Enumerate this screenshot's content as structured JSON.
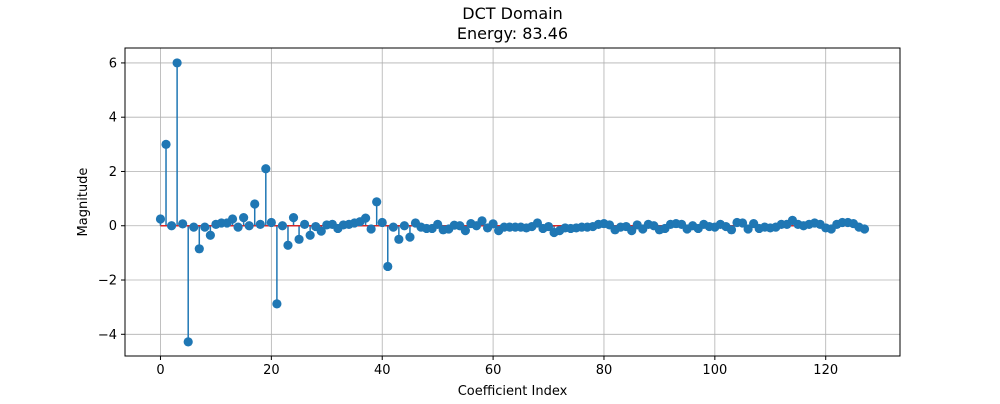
{
  "chart_data": {
    "type": "stem",
    "title": "DCT Domain",
    "subtitle": "Energy: 83.46",
    "xlabel": "Coefficient Index",
    "ylabel": "Magnitude",
    "xlim": [
      -6.4,
      133.4
    ],
    "ylim": [
      -4.8,
      6.55
    ],
    "xticks": [
      0,
      20,
      40,
      60,
      80,
      100,
      120
    ],
    "yticks": [
      -4,
      -2,
      0,
      2,
      4,
      6
    ],
    "ytick_labels": [
      "−4",
      "−2",
      "0",
      "2",
      "4",
      "6"
    ],
    "grid": true,
    "baseline": 0,
    "x": [
      0,
      1,
      2,
      3,
      4,
      5,
      6,
      7,
      8,
      9,
      10,
      11,
      12,
      13,
      14,
      15,
      16,
      17,
      18,
      19,
      20,
      21,
      22,
      23,
      24,
      25,
      26,
      27,
      28,
      29,
      30,
      31,
      32,
      33,
      34,
      35,
      36,
      37,
      38,
      39,
      40,
      41,
      42,
      43,
      44,
      45,
      46,
      47,
      48,
      49,
      50,
      51,
      52,
      53,
      54,
      55,
      56,
      57,
      58,
      59,
      60,
      61,
      62,
      63,
      64,
      65,
      66,
      67,
      68,
      69,
      70,
      71,
      72,
      73,
      74,
      75,
      76,
      77,
      78,
      79,
      80,
      81,
      82,
      83,
      84,
      85,
      86,
      87,
      88,
      89,
      90,
      91,
      92,
      93,
      94,
      95,
      96,
      97,
      98,
      99,
      100,
      101,
      102,
      103,
      104,
      105,
      106,
      107,
      108,
      109,
      110,
      111,
      112,
      113,
      114,
      115,
      116,
      117,
      118,
      119,
      120,
      121,
      122,
      123,
      124,
      125,
      126,
      127
    ],
    "values": [
      0.25,
      3.0,
      0.0,
      6.0,
      0.07,
      -4.28,
      -0.05,
      -0.85,
      -0.05,
      -0.35,
      0.05,
      0.1,
      0.1,
      0.25,
      -0.05,
      0.3,
      0.0,
      0.8,
      0.05,
      2.1,
      0.12,
      -2.88,
      0.0,
      -0.72,
      0.3,
      -0.5,
      0.05,
      -0.35,
      -0.03,
      -0.2,
      0.03,
      0.05,
      -0.1,
      0.03,
      0.05,
      0.1,
      0.15,
      0.28,
      -0.12,
      0.88,
      0.12,
      -1.5,
      -0.05,
      -0.5,
      0.0,
      -0.42,
      0.1,
      -0.05,
      -0.1,
      -0.1,
      0.05,
      -0.15,
      -0.12,
      0.02,
      0.0,
      -0.18,
      0.08,
      0.0,
      0.18,
      -0.08,
      0.07,
      -0.18,
      -0.05,
      -0.05,
      -0.05,
      -0.05,
      -0.08,
      -0.03,
      0.1,
      -0.1,
      -0.03,
      -0.25,
      -0.18,
      -0.08,
      -0.1,
      -0.08,
      -0.05,
      -0.05,
      -0.03,
      0.05,
      0.08,
      0.03,
      -0.15,
      -0.05,
      -0.03,
      -0.18,
      0.03,
      -0.12,
      0.05,
      0.0,
      -0.15,
      -0.1,
      0.05,
      0.08,
      0.05,
      -0.12,
      0.0,
      -0.1,
      0.05,
      -0.03,
      -0.05,
      0.05,
      -0.03,
      -0.15,
      0.12,
      0.1,
      -0.12,
      0.08,
      -0.1,
      -0.05,
      -0.08,
      -0.05,
      0.05,
      0.05,
      0.2,
      0.05,
      0.0,
      0.05,
      0.1,
      0.05,
      -0.08,
      -0.12,
      0.05,
      0.12,
      0.12,
      0.08,
      -0.05,
      -0.12
    ],
    "colors": {
      "marker": "#1f77b4",
      "stem": "#1f77b4",
      "baseline": "#d62728",
      "grid": "#b0b0b0"
    }
  }
}
